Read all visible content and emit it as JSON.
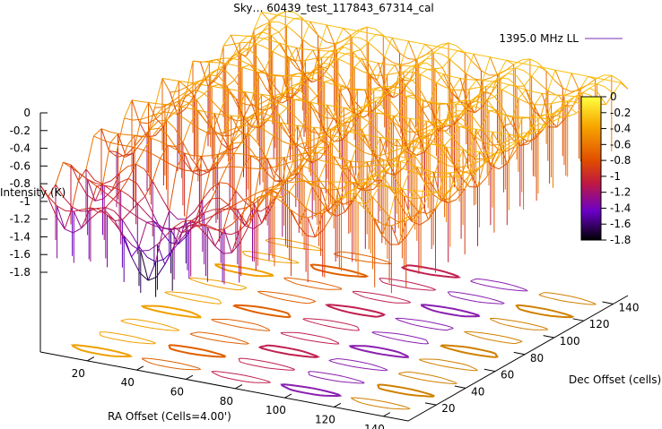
{
  "chart_data": {
    "type": "surface3d",
    "title": "Sky… 60439_test_117843_67314_cal",
    "legend_label": "1395.0 MHz LL",
    "zlabel": "Intensity (K)",
    "xlabel": "RA Offset (Cells=4.00')",
    "ylabel": "Dec Offset (cells)",
    "z_ticks": [
      "0",
      "-0.2",
      "-0.4",
      "-0.6",
      "-0.8",
      "-1",
      "-1.2",
      "-1.4",
      "-1.6",
      "-1.8"
    ],
    "zlim": [
      -1.8,
      0
    ],
    "x_ticks": [
      "20",
      "40",
      "60",
      "80",
      "100",
      "120",
      "140"
    ],
    "xlim": [
      1,
      150
    ],
    "y_ticks": [
      "20",
      "40",
      "60",
      "80",
      "100",
      "120",
      "140"
    ],
    "ylim": [
      1,
      150
    ],
    "colorbar": {
      "ticks": [
        "0",
        "-0.2",
        "-0.4",
        "-0.6",
        "-0.8",
        "-1",
        "-1.2",
        "-1.4",
        "-1.6",
        "-1.8"
      ],
      "range": [
        -1.8,
        0
      ],
      "palette": [
        "#000000",
        "#6a00c8",
        "#c01a40",
        "#e04b00",
        "#f8a800",
        "#ffff40"
      ]
    },
    "grid": false,
    "legend_position": "top-right",
    "has_base_contours": true
  }
}
